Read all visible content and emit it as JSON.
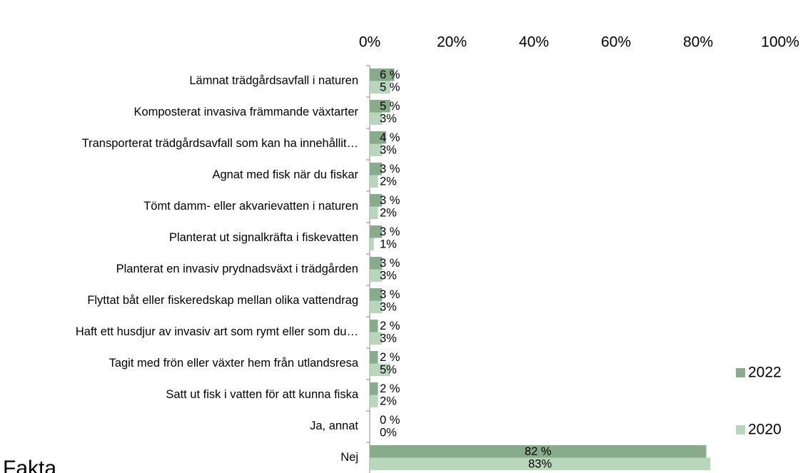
{
  "chart_data": {
    "type": "barh",
    "categories": [
      "Lämnat trädgårdsavfall i naturen",
      "Komposterat invasiva främmande växtarter",
      "Transporterat trädgårdsavfall som kan ha innehållit…",
      "Agnat med fisk när du fiskar",
      "Tömt damm- eller akvarievatten i naturen",
      "Planterat ut signalkräfta i fiskevatten",
      "Planterat en invasiv prydnadsväxt i trädgården",
      "Flyttat båt eller fiskeredskap mellan olika vattendrag",
      "Haft ett husdjur av invasiv art som rymt eller som du…",
      "Tagit med frön eller växter hem från utlandsresa",
      "Satt ut fisk i vatten för att kunna fiska",
      "Ja, annat",
      "Nej"
    ],
    "series": [
      {
        "name": "2022",
        "color": "#88ab8b",
        "values": [
          6,
          5,
          4,
          3,
          3,
          3,
          3,
          3,
          2,
          2,
          2,
          0,
          82
        ],
        "value_labels": [
          "6 %",
          "5 %",
          "4 %",
          "3 %",
          "3 %",
          "3 %",
          "3 %",
          "3 %",
          "2 %",
          "2 %",
          "2 %",
          "0 %",
          "82 %"
        ]
      },
      {
        "name": "2020",
        "color": "#b8d6bb",
        "values": [
          5,
          3,
          3,
          2,
          2,
          1,
          3,
          3,
          3,
          5,
          2,
          0,
          83
        ],
        "value_labels": [
          "5 %",
          "3%",
          "3%",
          "2%",
          "2%",
          "1%",
          "3%",
          "3%",
          "3%",
          "5%",
          "2%",
          "0%",
          "83%"
        ]
      }
    ],
    "xlim": [
      0,
      100
    ],
    "xticks": [
      {
        "value": 0,
        "label": "0%"
      },
      {
        "value": 20,
        "label": "20%"
      },
      {
        "value": 40,
        "label": "40%"
      },
      {
        "value": 60,
        "label": "60%"
      },
      {
        "value": 80,
        "label": "80%"
      },
      {
        "value": 100,
        "label": "100%"
      }
    ],
    "grid": false,
    "legend": "right",
    "annotation": "Fakta"
  }
}
